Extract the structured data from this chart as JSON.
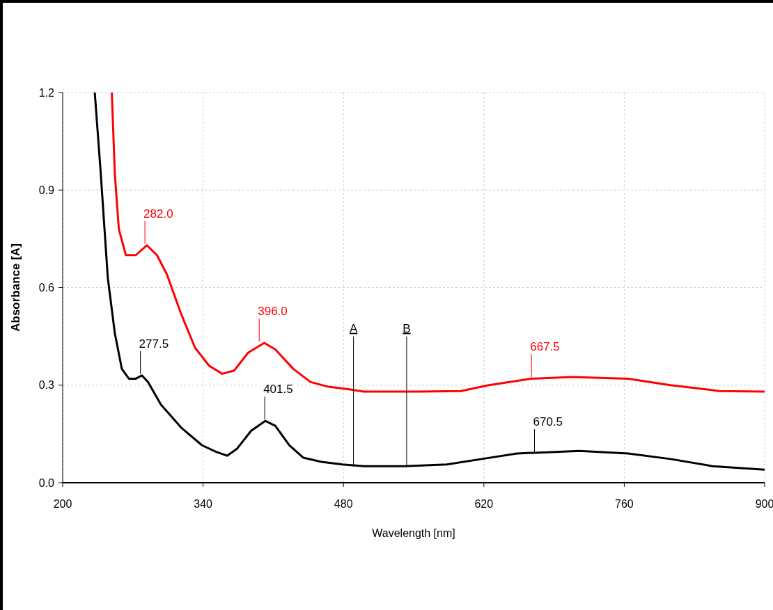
{
  "chart_data": {
    "type": "line",
    "xlabel": "Wavelength [nm]",
    "ylabel": "Absorbance [A]",
    "xlim": [
      200,
      900
    ],
    "xticks": [
      200,
      340,
      480,
      620,
      760,
      900
    ],
    "ylim": [
      0,
      1.2
    ],
    "yticks": [
      {
        "value": 0,
        "label": "0.0"
      },
      0.3,
      0.6,
      0.9,
      1.2
    ],
    "grid": true,
    "line_style": "solid",
    "marker": "none",
    "series": [
      {
        "color": "#ff0000",
        "x": [
          249,
          252,
          256,
          263,
          273,
          284,
          294,
          304,
          318,
          332,
          346,
          359,
          371,
          385,
          401,
          412,
          430,
          447,
          465,
          486,
          500,
          555,
          597,
          625,
          667,
          708,
          764,
          806,
          855,
          900
        ],
        "values": [
          1.2,
          0.95,
          0.78,
          0.7,
          0.7,
          0.73,
          0.7,
          0.64,
          0.52,
          0.415,
          0.36,
          0.335,
          0.345,
          0.4,
          0.43,
          0.41,
          0.35,
          0.31,
          0.295,
          0.287,
          0.28,
          0.28,
          0.282,
          0.3,
          0.32,
          0.325,
          0.32,
          0.3,
          0.282,
          0.28
        ]
      },
      {
        "color": "#000000",
        "x": [
          232,
          238,
          245,
          252,
          259,
          266,
          273,
          279,
          285,
          298,
          318,
          339,
          353,
          364,
          374,
          388,
          402,
          412,
          426,
          440,
          458,
          479,
          500,
          541,
          583,
          618,
          653,
          688,
          715,
          764,
          806,
          848,
          900
        ],
        "values": [
          1.2,
          0.95,
          0.63,
          0.46,
          0.35,
          0.32,
          0.32,
          0.33,
          0.31,
          0.24,
          0.17,
          0.115,
          0.095,
          0.083,
          0.105,
          0.16,
          0.19,
          0.175,
          0.115,
          0.077,
          0.064,
          0.056,
          0.051,
          0.051,
          0.056,
          0.073,
          0.09,
          0.094,
          0.098,
          0.09,
          0.073,
          0.051,
          0.04
        ]
      }
    ],
    "annotations": [
      {
        "text": "282.0",
        "x": 282,
        "y": 0.73
      },
      {
        "text": "396.0",
        "x": 396,
        "y": 0.43
      },
      {
        "text": "667.5",
        "x": 667.5,
        "y": 0.32
      },
      {
        "text": "277.5",
        "x": 277.5,
        "y": 0.33
      },
      {
        "text": "401.5",
        "x": 401.5,
        "y": 0.19
      },
      {
        "text": "670.5",
        "x": 670.5,
        "y": 0.09
      }
    ],
    "ref_lines": [
      {
        "axis": "x",
        "value": 490,
        "label": "A",
        "color": "#000000"
      },
      {
        "axis": "x",
        "value": 543,
        "label": "B",
        "color": "#000000"
      }
    ]
  }
}
